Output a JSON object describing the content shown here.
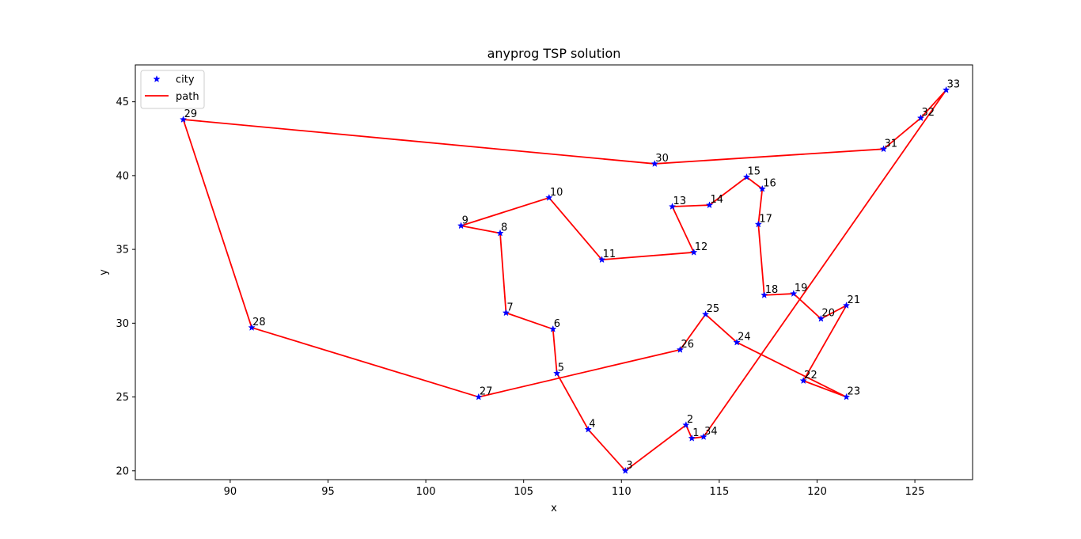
{
  "chart_data": {
    "type": "line",
    "title": "anyprog TSP solution",
    "xlabel": "x",
    "ylabel": "y",
    "xlim": [
      85.15,
      127.95
    ],
    "ylim": [
      19.4,
      47.5
    ],
    "xticks": [
      90,
      95,
      100,
      105,
      110,
      115,
      120,
      125
    ],
    "yticks": [
      20,
      25,
      30,
      35,
      40,
      45
    ],
    "legend_position": "top-left",
    "grid": false,
    "series": [
      {
        "name": "city",
        "marker": "star",
        "color": "#0000ff"
      },
      {
        "name": "path",
        "marker": "line",
        "color": "#ff0000"
      }
    ],
    "cities": [
      {
        "label": "1",
        "x": 113.6,
        "y": 22.2
      },
      {
        "label": "2",
        "x": 113.3,
        "y": 23.1
      },
      {
        "label": "3",
        "x": 110.2,
        "y": 20.0
      },
      {
        "label": "4",
        "x": 108.3,
        "y": 22.8
      },
      {
        "label": "5",
        "x": 106.7,
        "y": 26.6
      },
      {
        "label": "6",
        "x": 106.5,
        "y": 29.6
      },
      {
        "label": "7",
        "x": 104.1,
        "y": 30.7
      },
      {
        "label": "8",
        "x": 103.8,
        "y": 36.1
      },
      {
        "label": "9",
        "x": 101.8,
        "y": 36.6
      },
      {
        "label": "10",
        "x": 106.3,
        "y": 38.5
      },
      {
        "label": "11",
        "x": 109.0,
        "y": 34.3
      },
      {
        "label": "12",
        "x": 113.7,
        "y": 34.8
      },
      {
        "label": "13",
        "x": 112.6,
        "y": 37.9
      },
      {
        "label": "14",
        "x": 114.5,
        "y": 38.0
      },
      {
        "label": "15",
        "x": 116.4,
        "y": 39.9
      },
      {
        "label": "16",
        "x": 117.2,
        "y": 39.1
      },
      {
        "label": "17",
        "x": 117.0,
        "y": 36.7
      },
      {
        "label": "18",
        "x": 117.3,
        "y": 31.9
      },
      {
        "label": "19",
        "x": 118.8,
        "y": 32.0
      },
      {
        "label": "20",
        "x": 120.2,
        "y": 30.3
      },
      {
        "label": "21",
        "x": 121.5,
        "y": 31.2
      },
      {
        "label": "22",
        "x": 119.3,
        "y": 26.1
      },
      {
        "label": "23",
        "x": 121.5,
        "y": 25.0
      },
      {
        "label": "24",
        "x": 115.9,
        "y": 28.7
      },
      {
        "label": "25",
        "x": 114.3,
        "y": 30.6
      },
      {
        "label": "26",
        "x": 113.0,
        "y": 28.2
      },
      {
        "label": "27",
        "x": 102.7,
        "y": 25.0
      },
      {
        "label": "28",
        "x": 91.1,
        "y": 29.7
      },
      {
        "label": "29",
        "x": 87.6,
        "y": 43.8
      },
      {
        "label": "30",
        "x": 111.7,
        "y": 40.8
      },
      {
        "label": "31",
        "x": 123.4,
        "y": 41.8
      },
      {
        "label": "32",
        "x": 125.3,
        "y": 43.9
      },
      {
        "label": "33",
        "x": 126.6,
        "y": 45.8
      },
      {
        "label": "34",
        "x": 114.2,
        "y": 22.3
      }
    ],
    "path_order": [
      "1",
      "2",
      "3",
      "4",
      "5",
      "6",
      "7",
      "8",
      "9",
      "10",
      "11",
      "12",
      "13",
      "14",
      "15",
      "16",
      "17",
      "18",
      "19",
      "20",
      "21",
      "22",
      "23",
      "24",
      "25",
      "26",
      "27",
      "28",
      "29",
      "30",
      "31",
      "32",
      "33",
      "34",
      "1"
    ]
  }
}
